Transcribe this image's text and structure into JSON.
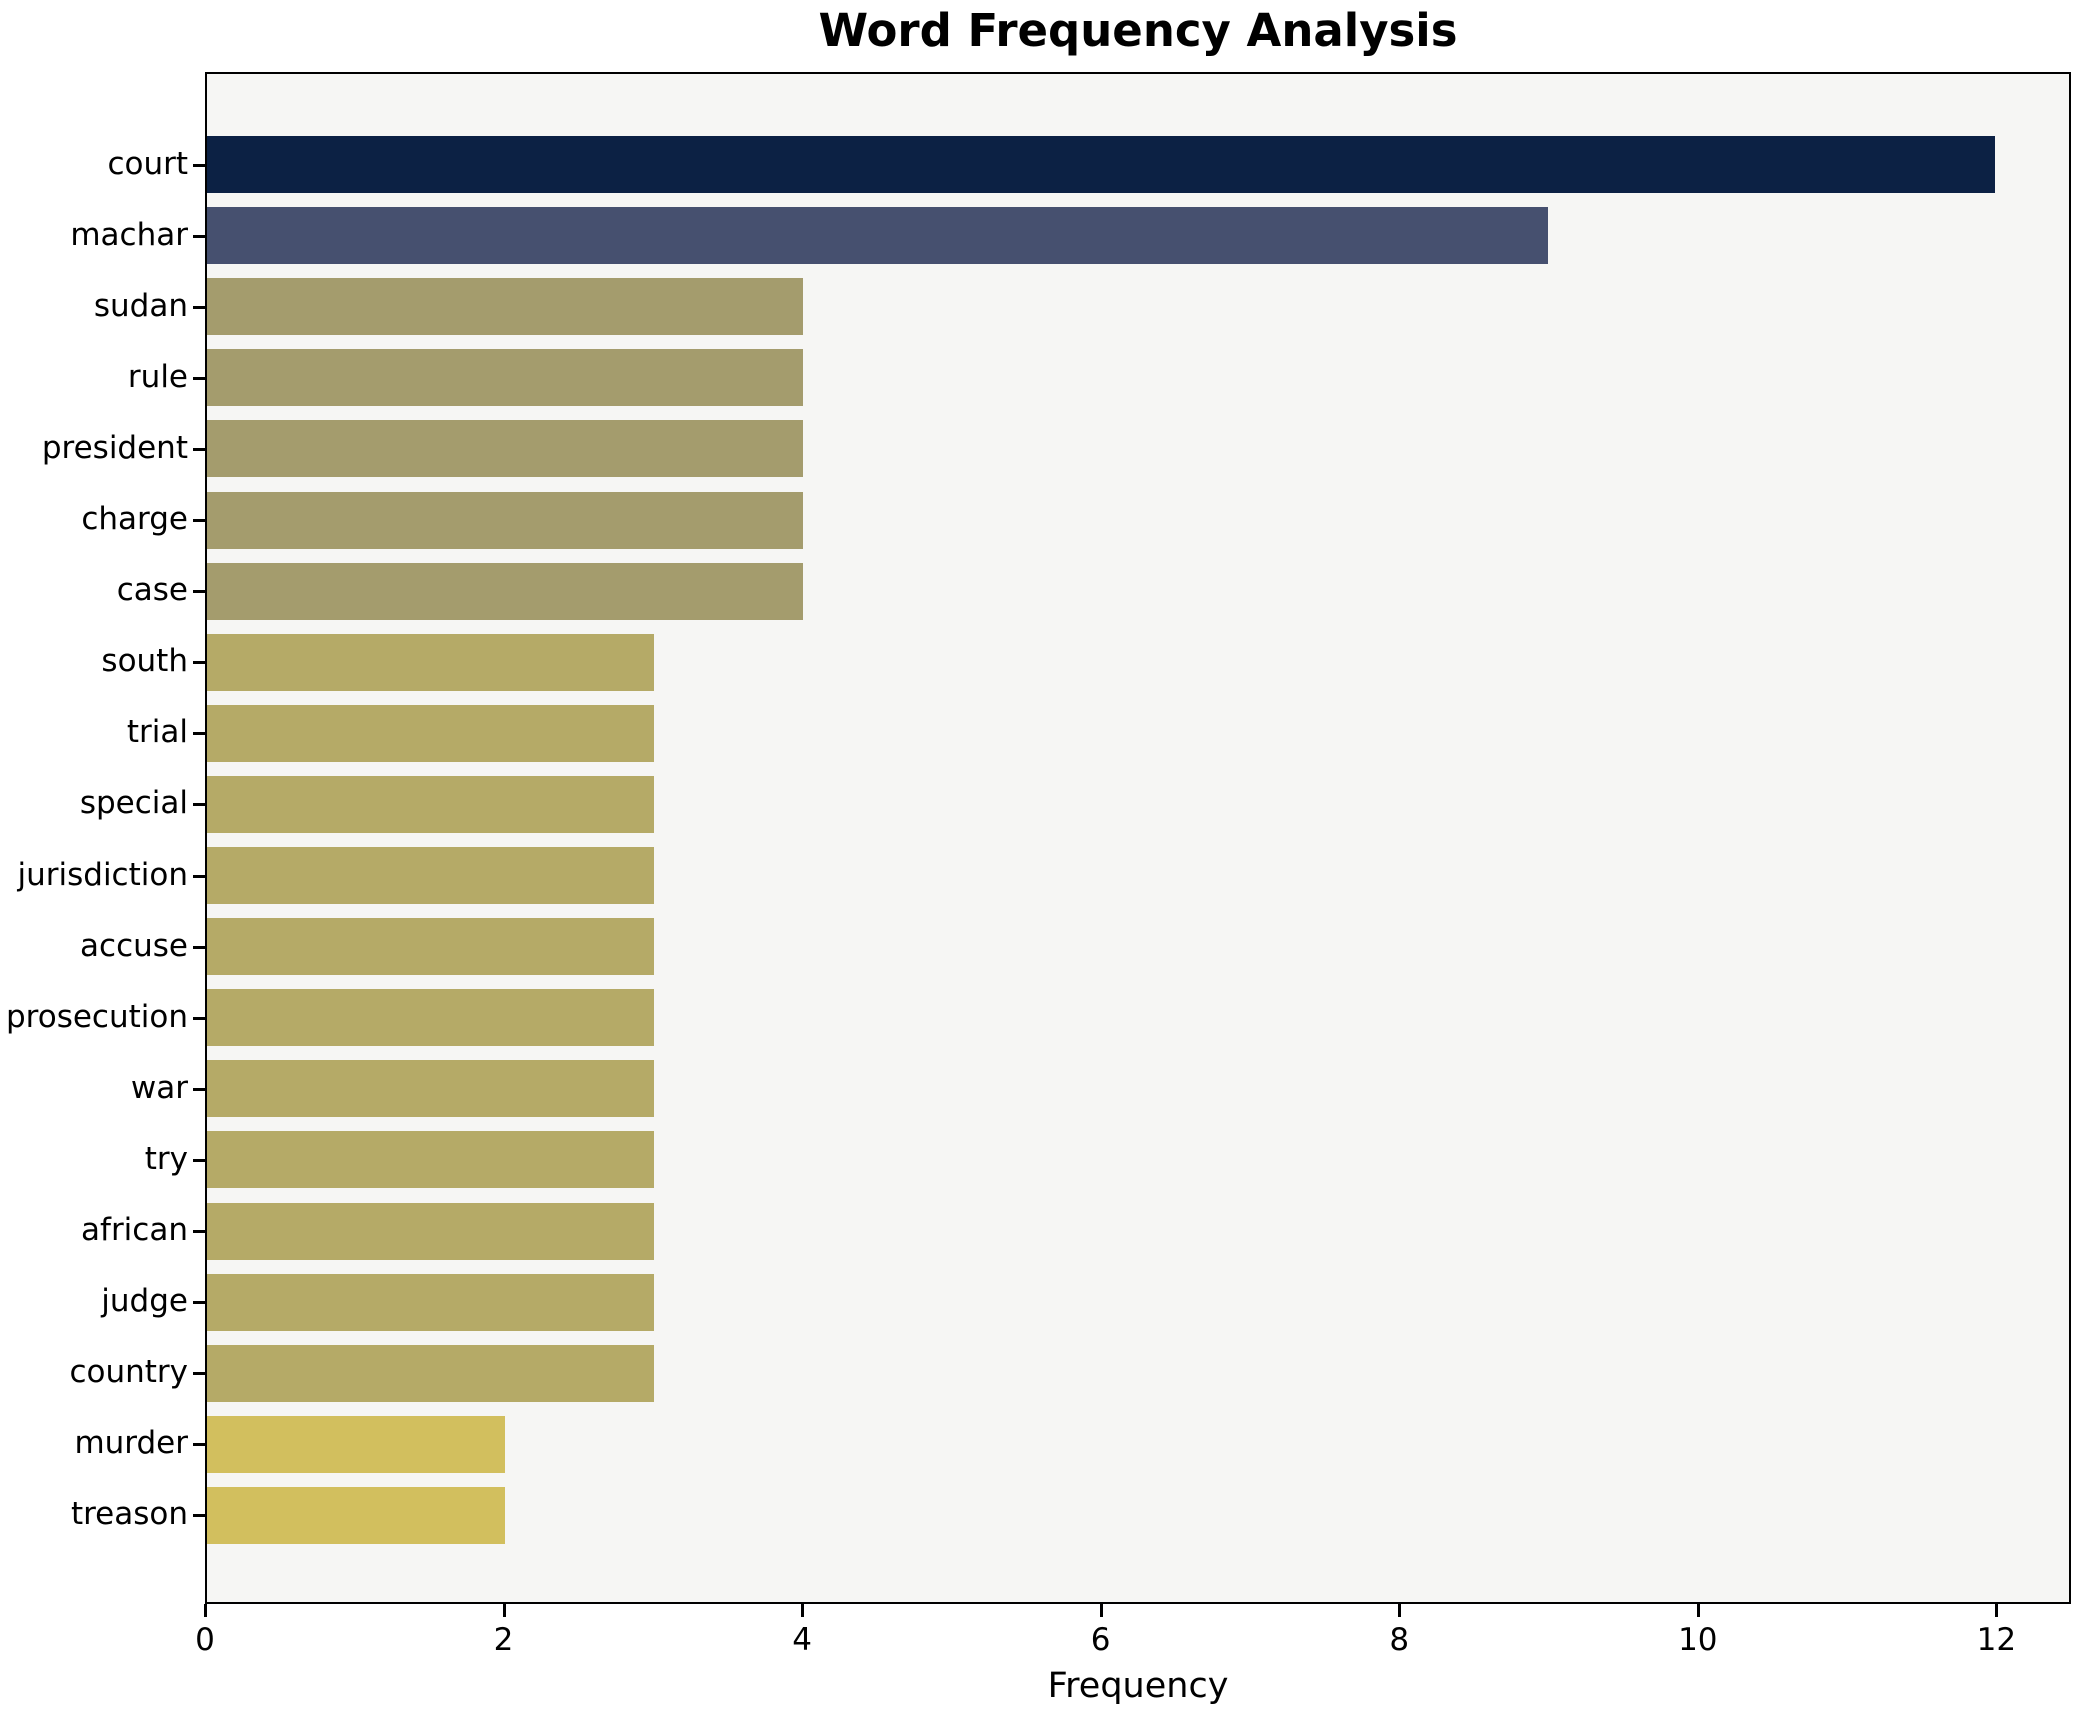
{
  "chart_data": {
    "type": "bar",
    "orientation": "horizontal",
    "title": "Word Frequency Analysis",
    "xlabel": "Frequency",
    "ylabel": "",
    "categories": [
      "court",
      "machar",
      "sudan",
      "rule",
      "president",
      "charge",
      "case",
      "south",
      "trial",
      "special",
      "jurisdiction",
      "accuse",
      "prosecution",
      "war",
      "try",
      "african",
      "judge",
      "country",
      "murder",
      "treason"
    ],
    "values": [
      12,
      9,
      4,
      4,
      4,
      4,
      4,
      3,
      3,
      3,
      3,
      3,
      3,
      3,
      3,
      3,
      3,
      3,
      2,
      2
    ],
    "bar_colors": [
      "#0c2144",
      "#46506f",
      "#a49c6d",
      "#a49c6d",
      "#a49c6d",
      "#a49c6d",
      "#a49c6d",
      "#b5aa67",
      "#b5aa67",
      "#b5aa67",
      "#b5aa67",
      "#b5aa67",
      "#b5aa67",
      "#b5aa67",
      "#b5aa67",
      "#b5aa67",
      "#b5aa67",
      "#b5aa67",
      "#d2bf5e",
      "#d2bf5e"
    ],
    "x_ticks": [
      "0",
      "2",
      "4",
      "6",
      "8",
      "10",
      "12"
    ],
    "x_tick_values": [
      0,
      2,
      4,
      6,
      8,
      10,
      12
    ],
    "xlim": [
      0,
      12.5
    ],
    "grid": false,
    "legend_position": "none",
    "plot_background": "#f6f6f4",
    "figure_background": "#ffffff",
    "spine_color": "#000000"
  }
}
